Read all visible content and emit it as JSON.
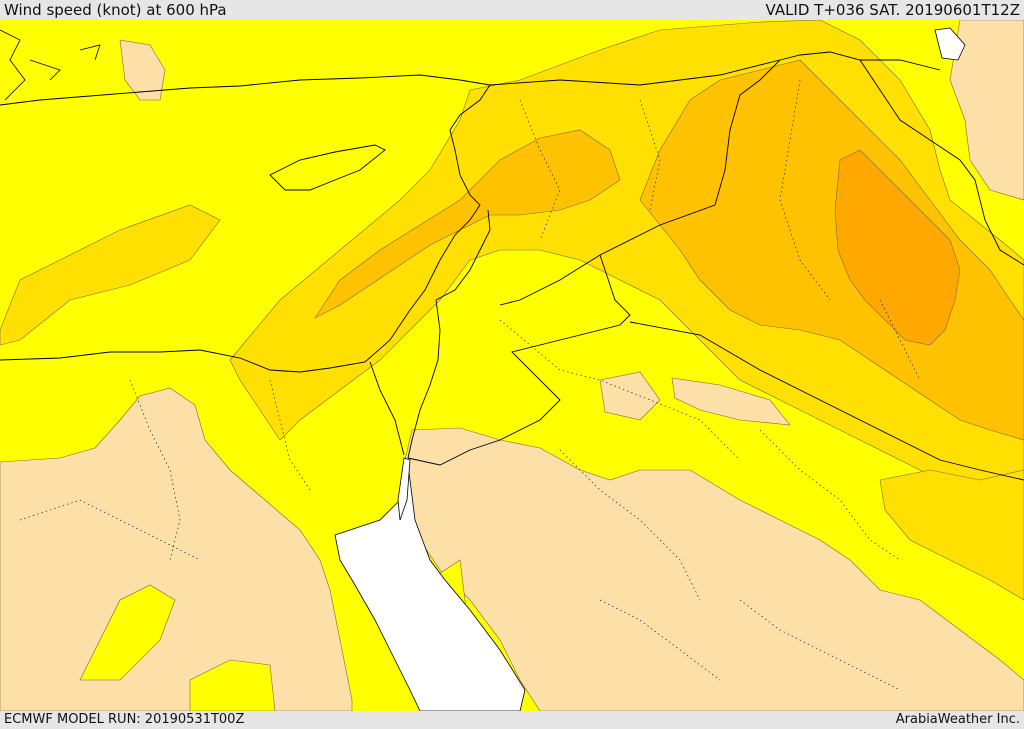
{
  "header": {
    "title": "Wind speed (knot) at 600 hPa",
    "valid": "VALID T+036 SAT. 20190601T12Z"
  },
  "footer": {
    "model_run": "ECMWF MODEL RUN: 20190531T00Z",
    "credit": "ArabiaWeather Inc."
  },
  "colors": {
    "band_lowest": "#fce0a8",
    "band_low": "#ffff00",
    "band_mid": "#ffe000",
    "band_high": "#ffc200",
    "band_higher": "#ffae00",
    "band_highest": "#ff9e00",
    "sea_unshaded": "#ffffff",
    "contour": "#7a6a40",
    "border": "#000000"
  }
}
